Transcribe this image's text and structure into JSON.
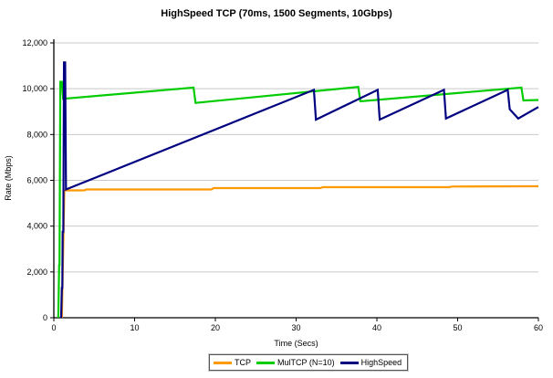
{
  "chart_data": {
    "type": "line",
    "title": "HighSpeed TCP (70ms, 1500 Segments, 10Gbps)",
    "xlabel": "Time (Secs)",
    "ylabel": "Rate (Mbps)",
    "xlim": [
      0,
      60
    ],
    "ylim": [
      0,
      12000
    ],
    "grid": "horizontal",
    "gridline_color": "#c9c9c9",
    "axis_color": "#000000",
    "background_color": "#ffffff",
    "legend_position": "bottom-center",
    "xticks": {
      "values": [
        0,
        10,
        20,
        30,
        40,
        50,
        60
      ],
      "labels": [
        "0",
        "10",
        "20",
        "30",
        "40",
        "50",
        "60"
      ]
    },
    "yticks": {
      "values": [
        0,
        2000,
        4000,
        6000,
        8000,
        10000,
        12000
      ],
      "labels": [
        "0",
        "2,000",
        "4,000",
        "6,000",
        "8,000",
        "10,000",
        "12,000"
      ]
    },
    "series": [
      {
        "name": "TCP",
        "color": "#FF9900",
        "points": [
          [
            1.0,
            0
          ],
          [
            1.3,
            5560
          ],
          [
            3.8,
            5560
          ],
          [
            4.0,
            5600
          ],
          [
            19.5,
            5600
          ],
          [
            19.8,
            5660
          ],
          [
            33.0,
            5660
          ],
          [
            33.3,
            5700
          ],
          [
            49.0,
            5700
          ],
          [
            49.3,
            5730
          ],
          [
            60,
            5740
          ]
        ]
      },
      {
        "name": "MulTCP (N=10)",
        "color": "#00CC00",
        "points": [
          [
            0.55,
            0
          ],
          [
            0.65,
            2300
          ],
          [
            0.7,
            2300
          ],
          [
            0.8,
            10300
          ],
          [
            1.0,
            10300
          ],
          [
            1.15,
            9560
          ],
          [
            17.3,
            10050
          ],
          [
            17.55,
            9380
          ],
          [
            37.7,
            10080
          ],
          [
            37.95,
            9450
          ],
          [
            57.9,
            10050
          ],
          [
            58.15,
            9490
          ],
          [
            60,
            9510
          ]
        ]
      },
      {
        "name": "HighSpeed",
        "color": "#000080",
        "points": [
          [
            0.9,
            0
          ],
          [
            1.0,
            1300
          ],
          [
            1.05,
            1300
          ],
          [
            1.1,
            3750
          ],
          [
            1.18,
            3750
          ],
          [
            1.25,
            11150
          ],
          [
            1.4,
            11150
          ],
          [
            1.5,
            5600
          ],
          [
            32.2,
            9950
          ],
          [
            32.45,
            8650
          ],
          [
            40.1,
            9950
          ],
          [
            40.35,
            8650
          ],
          [
            48.3,
            9950
          ],
          [
            48.55,
            8700
          ],
          [
            56.2,
            9950
          ],
          [
            56.45,
            9100
          ],
          [
            57.5,
            8700
          ],
          [
            60,
            9200
          ]
        ]
      }
    ]
  }
}
